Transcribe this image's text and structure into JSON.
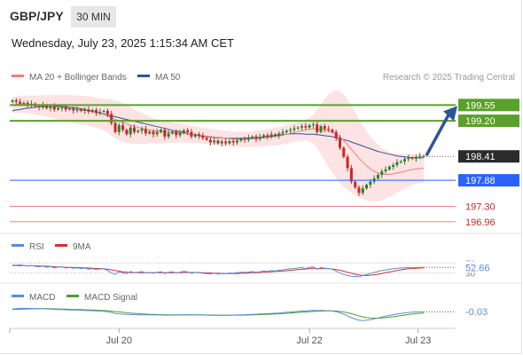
{
  "header": {
    "symbol": "GBP/JPY",
    "timeframe": "30 MIN",
    "timestamp": "Wednesday, July 23, 2025 1:15:34 AM CET"
  },
  "colors": {
    "ma20": "#f08080",
    "bollinger_fill": "#fde3e3",
    "ma50": "#2f5597",
    "resistance": "#5aa02c",
    "support": "#2962ff",
    "support_light": "#e55a5a",
    "bull_candle": "#2e7d32",
    "bear_candle": "#c62828",
    "arrow": "#2f5597",
    "rsi": "#5b8dd9",
    "rsi_ma": "#d32f2f",
    "macd": "#5b8dd9",
    "macd_signal": "#4aa02c"
  },
  "chart_data": [
    {
      "type": "candlestick",
      "title": "GBP/JPY",
      "legend": [
        {
          "name": "MA 20 + Bollinger Bands",
          "color": "#f08080"
        },
        {
          "name": "MA 50",
          "color": "#2f5597"
        }
      ],
      "legend_placement": "top-left",
      "credit": "Research © 2025 Trading Central",
      "x_ticks": [
        "Jul 20",
        "Jul 22",
        "Jul 23"
      ],
      "ylim": [
        196.8,
        199.95
      ],
      "current_price": {
        "label": "198.41",
        "value": 198.41
      },
      "levels": [
        {
          "label": "199.55",
          "value": 199.55,
          "kind": "resistance"
        },
        {
          "label": "199.20",
          "value": 199.2,
          "kind": "resistance"
        },
        {
          "label": "197.88",
          "value": 197.88,
          "kind": "support"
        },
        {
          "label": "197.30",
          "value": 197.3,
          "kind": "support-minor"
        },
        {
          "label": "196.96",
          "value": 196.96,
          "kind": "support-minor"
        }
      ],
      "closes": [
        199.65,
        199.62,
        199.58,
        199.6,
        199.55,
        199.58,
        199.52,
        199.5,
        199.55,
        199.48,
        199.52,
        199.45,
        199.48,
        199.5,
        199.45,
        199.47,
        199.43,
        199.45,
        199.42,
        199.45,
        199.4,
        199.44,
        199.38,
        199.4,
        199.42,
        199.35,
        199.15,
        198.95,
        199.1,
        199.0,
        198.9,
        199.05,
        198.95,
        198.98,
        199.02,
        198.92,
        198.96,
        198.9,
        198.95,
        199.0,
        198.85,
        198.92,
        198.96,
        198.88,
        198.93,
        198.99,
        198.95,
        198.85,
        198.9,
        198.87,
        198.82,
        198.78,
        198.72,
        198.76,
        198.7,
        198.74,
        198.7,
        198.75,
        198.72,
        198.76,
        198.8,
        198.78,
        198.82,
        198.85,
        198.8,
        198.84,
        198.88,
        198.85,
        198.9,
        198.87,
        198.92,
        198.95,
        198.98,
        199.0,
        199.03,
        199.05,
        199.08,
        199.05,
        199.1,
        199.12,
        198.95,
        199.08,
        199.02,
        199.0,
        198.95,
        198.82,
        198.6,
        198.4,
        198.15,
        197.85,
        197.72,
        197.6,
        197.7,
        197.78,
        197.85,
        197.92,
        198.0,
        198.08,
        198.12,
        198.18,
        198.22,
        198.28,
        198.3,
        198.35,
        198.38,
        198.36,
        198.4,
        198.42,
        198.41
      ],
      "ma20": [
        199.55,
        199.56,
        199.57,
        199.57,
        199.56,
        199.56,
        199.55,
        199.54,
        199.54,
        199.53,
        199.52,
        199.51,
        199.5,
        199.49,
        199.48,
        199.47,
        199.46,
        199.45,
        199.44,
        199.43,
        199.42,
        199.4,
        199.38,
        199.36,
        199.34,
        199.31,
        199.27,
        199.23,
        199.2,
        199.16,
        199.13,
        199.1,
        199.07,
        199.05,
        199.03,
        199.01,
        199.0,
        198.98,
        198.97,
        198.96,
        198.95,
        198.95,
        198.94,
        198.93,
        198.93,
        198.92,
        198.91,
        198.9,
        198.89,
        198.88,
        198.87,
        198.86,
        198.85,
        198.84,
        198.83,
        198.82,
        198.81,
        198.8,
        198.79,
        198.79,
        198.79,
        198.79,
        198.79,
        198.8,
        198.8,
        198.81,
        198.82,
        198.83,
        198.84,
        198.85,
        198.86,
        198.88,
        198.9,
        198.92,
        198.94,
        198.96,
        198.98,
        199.0,
        199.01,
        199.02,
        199.02,
        199.01,
        199.0,
        198.98,
        198.95,
        198.9,
        198.84,
        198.76,
        198.67,
        198.57,
        198.47,
        198.37,
        198.28,
        198.2,
        198.13,
        198.08,
        198.04,
        198.02,
        198.01,
        198.01,
        198.02,
        198.04,
        198.06,
        198.08,
        198.1,
        198.12,
        198.13,
        198.14,
        198.15
      ],
      "ma50": [
        199.42,
        199.44,
        199.45,
        199.47,
        199.48,
        199.49,
        199.5,
        199.51,
        199.51,
        199.52,
        199.52,
        199.52,
        199.52,
        199.52,
        199.51,
        199.5,
        199.49,
        199.48,
        199.47,
        199.45,
        199.43,
        199.41,
        199.39,
        199.37,
        199.35,
        199.33,
        199.31,
        199.29,
        199.27,
        199.25,
        199.23,
        199.21,
        199.19,
        199.17,
        199.15,
        199.13,
        199.11,
        199.09,
        199.07,
        199.05,
        199.03,
        199.01,
        198.99,
        198.97,
        198.96,
        198.94,
        198.92,
        198.9,
        198.89,
        198.87,
        198.86,
        198.85,
        198.84,
        198.83,
        198.82,
        198.82,
        198.81,
        198.81,
        198.81,
        198.81,
        198.81,
        198.81,
        198.82,
        198.82,
        198.83,
        198.83,
        198.84,
        198.85,
        198.86,
        198.87,
        198.88,
        198.89,
        198.9,
        198.91,
        198.91,
        198.91,
        198.91,
        198.9,
        198.9,
        198.9,
        198.89,
        198.88,
        198.87,
        198.86,
        198.85,
        198.82,
        198.8,
        198.78,
        198.76,
        198.73,
        198.7,
        198.67,
        198.64,
        198.61,
        198.58,
        198.55,
        198.52,
        198.5,
        198.48,
        198.46,
        198.44,
        198.42,
        198.41,
        198.4,
        198.39,
        198.38,
        198.38,
        198.38,
        198.38
      ],
      "bollinger_width": [
        0.18,
        0.18,
        0.19,
        0.19,
        0.2,
        0.2,
        0.21,
        0.22,
        0.23,
        0.24,
        0.25,
        0.26,
        0.27,
        0.28,
        0.29,
        0.3,
        0.31,
        0.31,
        0.32,
        0.32,
        0.33,
        0.33,
        0.34,
        0.34,
        0.35,
        0.37,
        0.4,
        0.42,
        0.43,
        0.43,
        0.42,
        0.4,
        0.38,
        0.36,
        0.34,
        0.32,
        0.3,
        0.28,
        0.27,
        0.26,
        0.25,
        0.24,
        0.23,
        0.22,
        0.21,
        0.2,
        0.2,
        0.19,
        0.19,
        0.18,
        0.18,
        0.18,
        0.17,
        0.17,
        0.17,
        0.17,
        0.17,
        0.17,
        0.17,
        0.17,
        0.17,
        0.17,
        0.17,
        0.17,
        0.18,
        0.18,
        0.18,
        0.19,
        0.19,
        0.2,
        0.2,
        0.2,
        0.21,
        0.21,
        0.21,
        0.22,
        0.22,
        0.23,
        0.26,
        0.32,
        0.42,
        0.55,
        0.68,
        0.8,
        0.9,
        0.98,
        1.02,
        1.02,
        1.0,
        0.96,
        0.92,
        0.87,
        0.82,
        0.77,
        0.72,
        0.67,
        0.62,
        0.58,
        0.54,
        0.5,
        0.47,
        0.44,
        0.41,
        0.38,
        0.36,
        0.34,
        0.33,
        0.32,
        0.31
      ]
    },
    {
      "type": "line",
      "legend": [
        {
          "name": "RSI",
          "color": "#5b8dd9"
        },
        {
          "name": "9MA",
          "color": "#d32f2f"
        }
      ],
      "levels": [
        {
          "label": "70",
          "value": 70
        },
        {
          "label": "30",
          "value": 30
        }
      ],
      "current_value": {
        "label": "52.66",
        "value": 52.66
      },
      "ylim": [
        0,
        100
      ],
      "rsi": [
        62,
        61,
        63,
        60,
        58,
        60,
        57,
        55,
        58,
        52,
        56,
        50,
        54,
        55,
        50,
        52,
        49,
        51,
        48,
        50,
        45,
        48,
        44,
        46,
        47,
        40,
        30,
        25,
        35,
        30,
        27,
        36,
        31,
        33,
        36,
        30,
        32,
        29,
        32,
        35,
        28,
        33,
        35,
        30,
        33,
        37,
        34,
        29,
        32,
        31,
        29,
        27,
        26,
        29,
        26,
        28,
        27,
        30,
        29,
        31,
        33,
        32,
        34,
        36,
        33,
        35,
        38,
        36,
        40,
        38,
        41,
        43,
        45,
        47,
        48,
        50,
        52,
        48,
        53,
        55,
        45,
        52,
        49,
        48,
        45,
        38,
        30,
        24,
        20,
        17,
        16,
        15,
        20,
        24,
        28,
        32,
        36,
        40,
        42,
        45,
        47,
        49,
        50,
        51,
        52,
        51,
        52,
        53,
        52.66
      ],
      "rsi_ma": [
        60,
        60,
        60,
        60,
        59,
        59,
        59,
        58,
        58,
        57,
        56,
        55,
        54,
        54,
        53,
        53,
        52,
        52,
        51,
        51,
        50,
        49,
        48,
        48,
        47,
        45,
        43,
        40,
        37,
        35,
        33,
        32,
        31,
        31,
        31,
        31,
        31,
        31,
        31,
        31,
        31,
        31,
        31,
        31,
        31,
        32,
        32,
        32,
        32,
        31,
        31,
        30,
        30,
        29,
        29,
        28,
        28,
        28,
        28,
        28,
        29,
        29,
        30,
        31,
        31,
        32,
        33,
        34,
        35,
        36,
        37,
        38,
        39,
        41,
        42,
        44,
        45,
        46,
        48,
        49,
        48,
        48,
        48,
        47,
        46,
        44,
        41,
        37,
        33,
        29,
        25,
        22,
        20,
        20,
        21,
        23,
        25,
        28,
        31,
        34,
        37,
        40,
        43,
        45,
        47,
        48,
        49,
        50,
        51
      ]
    },
    {
      "type": "line",
      "legend": [
        {
          "name": "MACD",
          "color": "#5b8dd9"
        },
        {
          "name": "MACD Signal",
          "color": "#4aa02c"
        }
      ],
      "current_value": {
        "label": "-0.03",
        "value": -0.03
      },
      "ylim": [
        -0.3,
        0.15
      ],
      "macd": [
        0.02,
        0.025,
        0.03,
        0.032,
        0.03,
        0.03,
        0.028,
        0.025,
        0.024,
        0.02,
        0.018,
        0.012,
        0.01,
        0.008,
        0.004,
        0.002,
        0.0,
        -0.002,
        -0.004,
        -0.006,
        -0.01,
        -0.012,
        -0.016,
        -0.02,
        -0.022,
        -0.03,
        -0.045,
        -0.06,
        -0.068,
        -0.075,
        -0.08,
        -0.082,
        -0.085,
        -0.086,
        -0.085,
        -0.088,
        -0.088,
        -0.09,
        -0.09,
        -0.088,
        -0.092,
        -0.092,
        -0.09,
        -0.092,
        -0.09,
        -0.086,
        -0.085,
        -0.088,
        -0.088,
        -0.088,
        -0.09,
        -0.092,
        -0.095,
        -0.095,
        -0.097,
        -0.096,
        -0.096,
        -0.094,
        -0.093,
        -0.09,
        -0.087,
        -0.085,
        -0.082,
        -0.078,
        -0.076,
        -0.072,
        -0.068,
        -0.066,
        -0.062,
        -0.058,
        -0.054,
        -0.048,
        -0.042,
        -0.036,
        -0.03,
        -0.024,
        -0.018,
        -0.016,
        -0.01,
        -0.005,
        -0.01,
        -0.008,
        -0.01,
        -0.012,
        -0.018,
        -0.03,
        -0.05,
        -0.075,
        -0.105,
        -0.14,
        -0.165,
        -0.185,
        -0.19,
        -0.185,
        -0.175,
        -0.16,
        -0.145,
        -0.128,
        -0.112,
        -0.098,
        -0.085,
        -0.072,
        -0.062,
        -0.052,
        -0.044,
        -0.04,
        -0.035,
        -0.032,
        -0.03
      ],
      "macd_signal": [
        0.01,
        0.012,
        0.015,
        0.018,
        0.02,
        0.022,
        0.023,
        0.024,
        0.024,
        0.024,
        0.023,
        0.022,
        0.02,
        0.018,
        0.016,
        0.014,
        0.012,
        0.01,
        0.008,
        0.006,
        0.003,
        0.0,
        -0.003,
        -0.006,
        -0.009,
        -0.013,
        -0.019,
        -0.026,
        -0.034,
        -0.042,
        -0.049,
        -0.055,
        -0.061,
        -0.066,
        -0.07,
        -0.073,
        -0.076,
        -0.079,
        -0.081,
        -0.083,
        -0.085,
        -0.086,
        -0.087,
        -0.088,
        -0.088,
        -0.088,
        -0.088,
        -0.088,
        -0.088,
        -0.088,
        -0.088,
        -0.089,
        -0.09,
        -0.091,
        -0.092,
        -0.093,
        -0.093,
        -0.093,
        -0.093,
        -0.093,
        -0.092,
        -0.091,
        -0.089,
        -0.087,
        -0.085,
        -0.083,
        -0.08,
        -0.078,
        -0.075,
        -0.072,
        -0.068,
        -0.064,
        -0.06,
        -0.055,
        -0.05,
        -0.045,
        -0.04,
        -0.035,
        -0.03,
        -0.025,
        -0.022,
        -0.019,
        -0.017,
        -0.016,
        -0.016,
        -0.019,
        -0.025,
        -0.035,
        -0.049,
        -0.067,
        -0.087,
        -0.107,
        -0.124,
        -0.137,
        -0.145,
        -0.148,
        -0.148,
        -0.144,
        -0.138,
        -0.13,
        -0.121,
        -0.111,
        -0.101,
        -0.091,
        -0.082,
        -0.074,
        -0.066,
        -0.059,
        -0.054
      ]
    }
  ]
}
